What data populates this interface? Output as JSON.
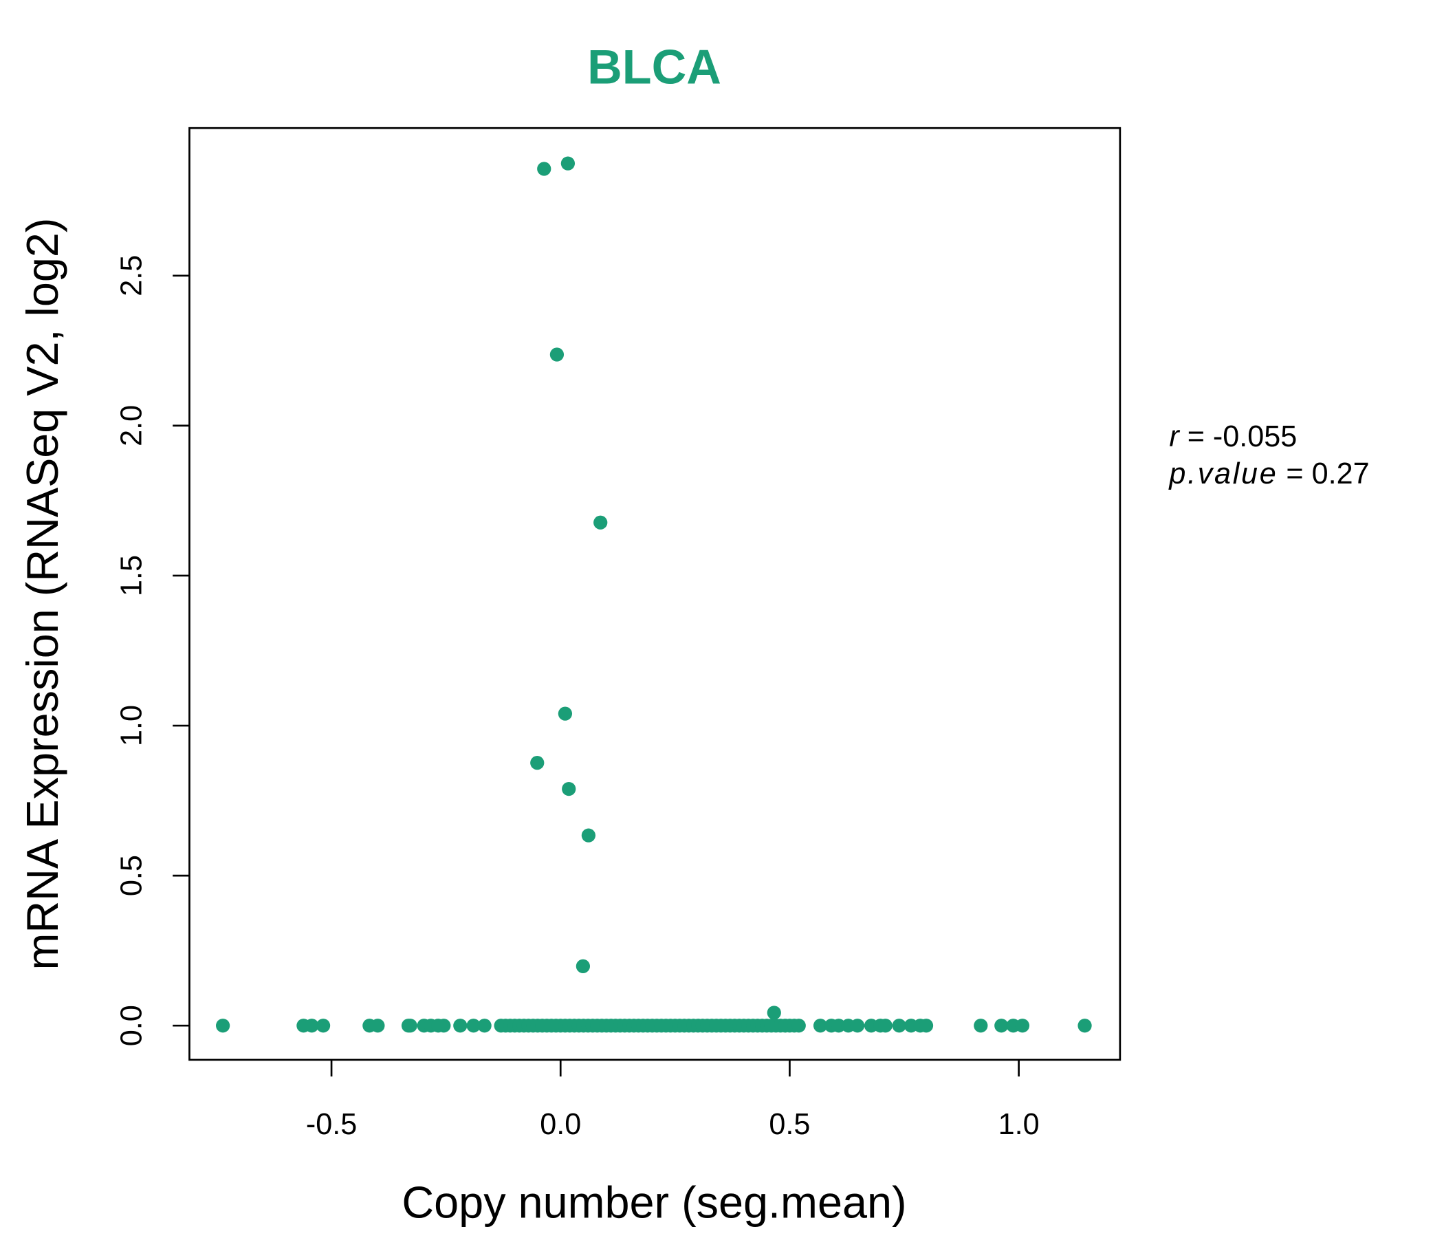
{
  "chart_data": {
    "type": "scatter",
    "title": "BLCA",
    "xlabel": "Copy number (seg.mean)",
    "ylabel": "mRNA Expression (RNASeq V2, log2)",
    "xlim": [
      -0.81,
      1.221
    ],
    "ylim": [
      -0.114,
      2.992
    ],
    "xticks": [
      -0.5,
      0.0,
      0.5,
      1.0
    ],
    "xtick_labels": [
      "-0.5",
      "0.0",
      "0.5",
      "1.0"
    ],
    "yticks": [
      0.0,
      0.5,
      1.0,
      1.5,
      2.0,
      2.5
    ],
    "ytick_labels": [
      "0.0",
      "0.5",
      "1.0",
      "1.5",
      "2.0",
      "2.5"
    ],
    "grid": false,
    "color": "#1b9e77",
    "annotation": {
      "r_label": "r",
      "r_value": "= -0.055",
      "p_label": "p.value",
      "p_value": "= 0.27"
    },
    "points": [
      [
        -0.036,
        2.856
      ],
      [
        0.016,
        2.874
      ],
      [
        -0.008,
        2.237
      ],
      [
        0.087,
        1.677
      ],
      [
        0.01,
        1.04
      ],
      [
        -0.051,
        0.876
      ],
      [
        0.018,
        0.789
      ],
      [
        0.061,
        0.634
      ],
      [
        0.049,
        0.198
      ],
      [
        0.466,
        0.043
      ]
    ],
    "zero_x": [
      -0.737,
      -0.561,
      -0.543,
      -0.518,
      -0.417,
      -0.399,
      -0.332,
      -0.328,
      -0.298,
      -0.283,
      -0.267,
      -0.255,
      -0.219,
      -0.19,
      -0.166,
      -0.13,
      -0.12,
      -0.11,
      -0.1,
      -0.09,
      -0.08,
      -0.07,
      -0.06,
      -0.05,
      -0.04,
      -0.03,
      -0.02,
      -0.01,
      0.0,
      0.01,
      0.02,
      0.03,
      0.04,
      0.05,
      0.06,
      0.07,
      0.08,
      0.09,
      0.1,
      0.11,
      0.12,
      0.13,
      0.14,
      0.15,
      0.16,
      0.17,
      0.18,
      0.19,
      0.2,
      0.21,
      0.22,
      0.23,
      0.24,
      0.25,
      0.26,
      0.27,
      0.28,
      0.29,
      0.3,
      0.31,
      0.32,
      0.33,
      0.34,
      0.35,
      0.36,
      0.37,
      0.38,
      0.39,
      0.4,
      0.41,
      0.42,
      0.43,
      0.44,
      0.45,
      0.46,
      0.47,
      0.48,
      0.49,
      0.5,
      0.51,
      0.52,
      0.567,
      0.591,
      0.607,
      0.628,
      0.648,
      0.678,
      0.698,
      0.709,
      0.739,
      0.765,
      0.785,
      0.798,
      0.917,
      0.962,
      0.988,
      1.008,
      1.144
    ]
  }
}
